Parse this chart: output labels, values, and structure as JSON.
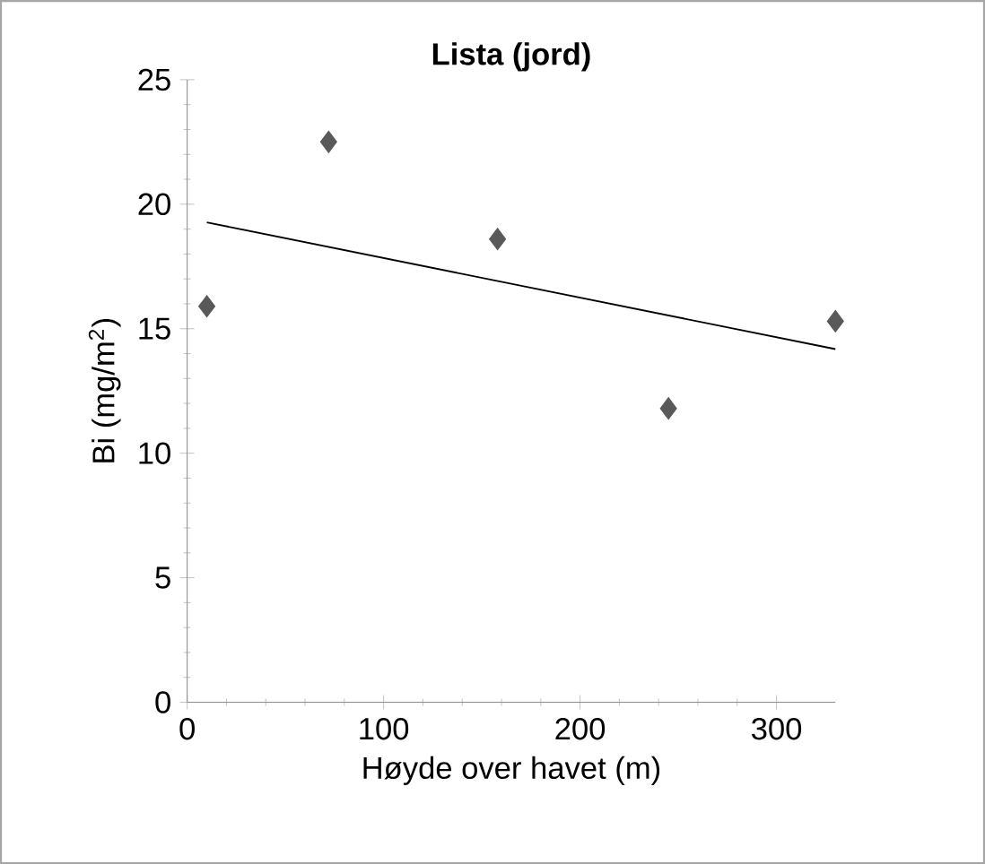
{
  "chart_data": {
    "type": "scatter",
    "title": "**Lista (jord)**",
    "xlabel": "Høyde over havet (m)",
    "ylabel": "Bi (mg/m$^{2}$)",
    "xlim": [
      0,
      330
    ],
    "xticks": [
      0,
      100,
      200,
      300
    ],
    "ylim": [
      0,
      25
    ],
    "yticks": [
      0,
      5,
      10,
      15,
      20,
      25
    ],
    "grid": false,
    "marker": "diamond",
    "series": [
      {
        "color": "#595959",
        "x": [
          10,
          72,
          158,
          245,
          330
        ],
        "values": [
          15.9,
          22.5,
          18.6,
          11.8,
          15.3
        ]
      },
      {
        "type": "line",
        "color": "#000000",
        "x": [
          10,
          330
        ],
        "values": [
          19.27,
          14.18
        ],
        "marker": "none",
        "line_style": "solid"
      }
    ]
  }
}
